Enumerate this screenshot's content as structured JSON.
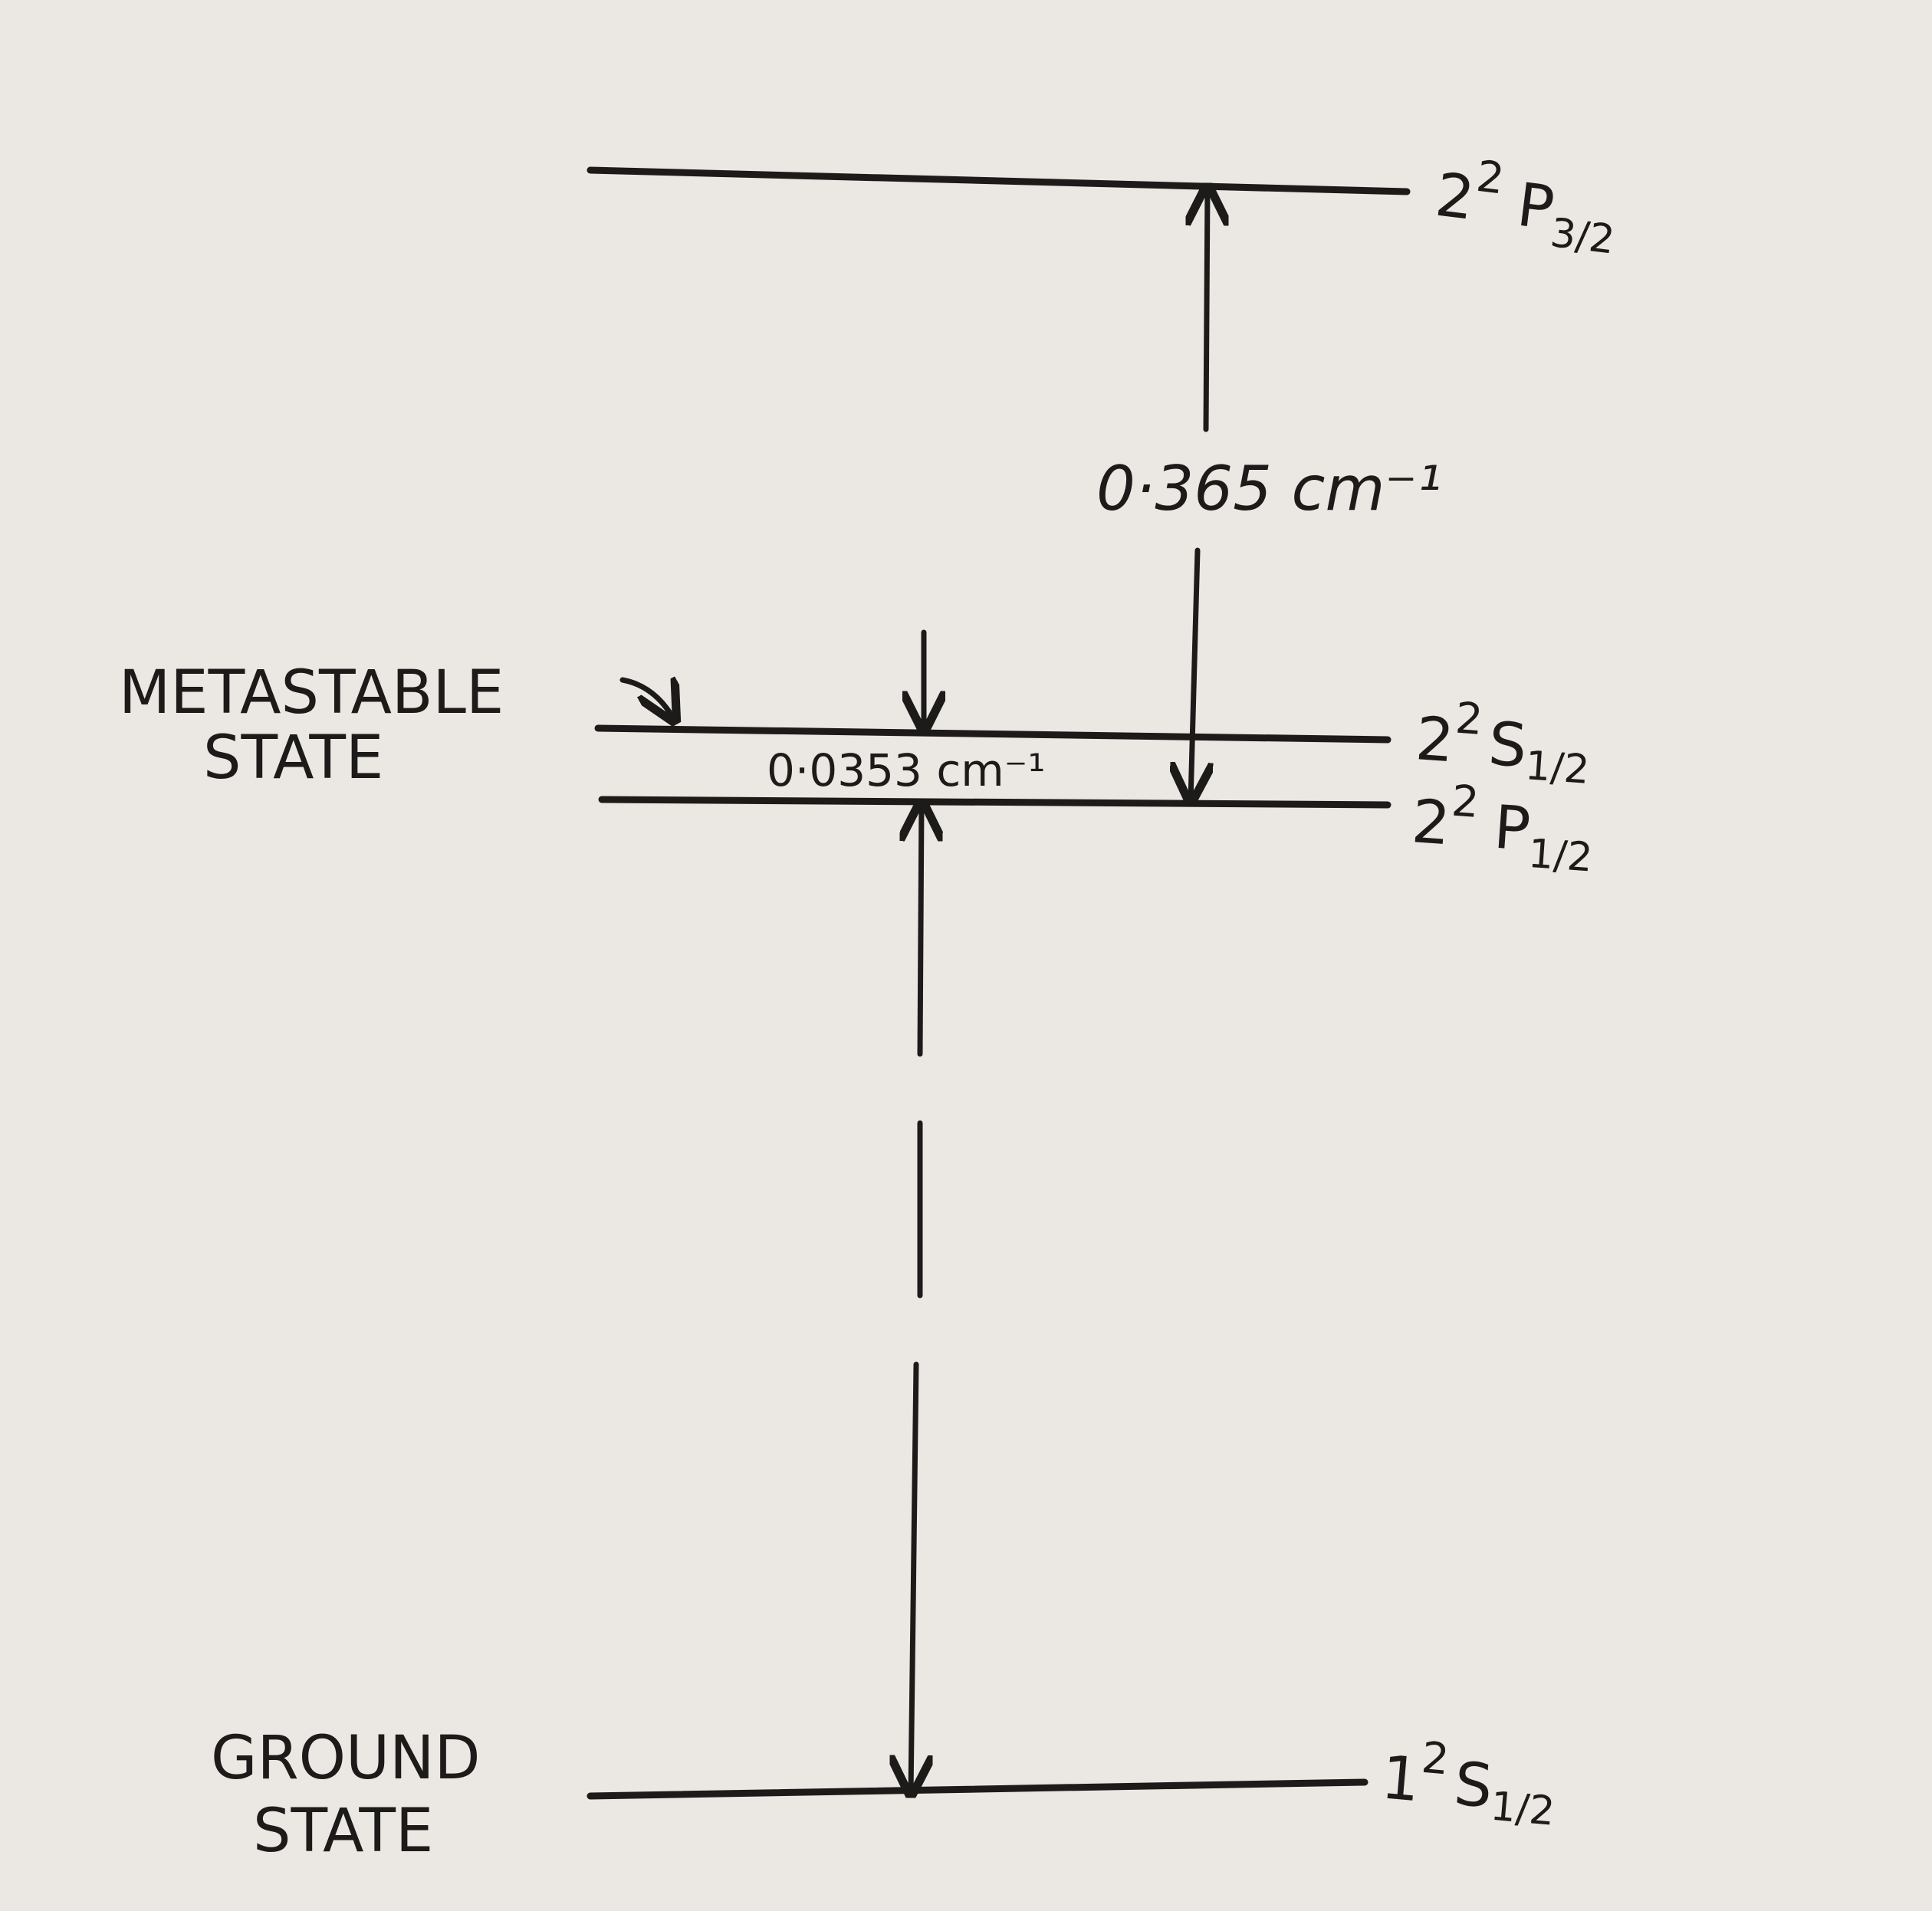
{
  "levels": {
    "p32": {
      "prefix": "2",
      "sup": "2",
      "letter": "P",
      "sub": "3/2"
    },
    "s12": {
      "prefix": "2",
      "sup": "2",
      "letter": "S",
      "sub": "1/2"
    },
    "p12": {
      "prefix": "2",
      "sup": "2",
      "letter": "P",
      "sub": "1/2"
    },
    "ground": {
      "prefix": "1",
      "sup": "2",
      "letter": "S",
      "sub": "1/2"
    }
  },
  "labels": {
    "metastable_line1": "METASTABLE",
    "metastable_line2": "STATE",
    "ground_line1": "GROUND",
    "ground_line2": "STATE"
  },
  "separations": {
    "fine_structure": "0·365 cm⁻¹",
    "lamb_shift": "0·0353 cm⁻¹"
  },
  "colors": {
    "ink": "#1d1b19",
    "paper": "#ebe7e2"
  }
}
